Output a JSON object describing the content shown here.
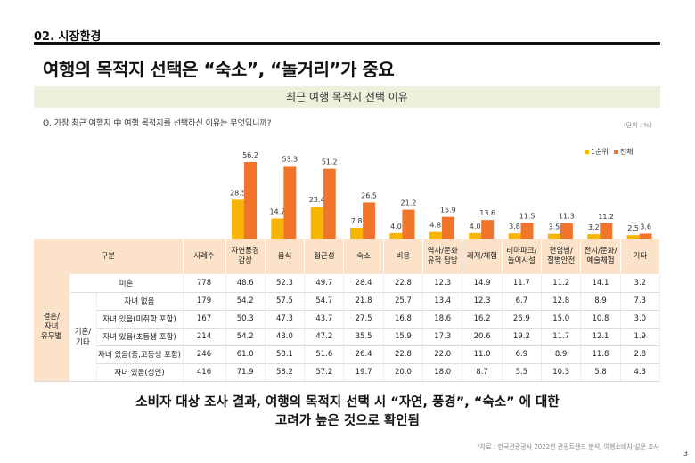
{
  "section": "02. 시장환경",
  "title": "여행의 목적지 선택은 “숙소”, “놀거리”가 중요",
  "banner": "최근 여행 목적지 선택 이유",
  "question": "Q. 가장 최근 여행지 中 여행 목적지를 선택하신 이유는 무엇입니까?",
  "unit": "(단위 : %)",
  "chart_data": {
    "type": "bar",
    "categories": [
      "자연풍경 감상",
      "음식",
      "접근성",
      "숙소",
      "비용",
      "역사/문화 유적 탐방",
      "레저/체험",
      "테마파크/놀이시설",
      "전염병/질병안전",
      "전시/문화/예술체험",
      "기타"
    ],
    "series": [
      {
        "name": "1순위",
        "color": "#f7b500",
        "values": [
          28.5,
          14.7,
          23.4,
          7.8,
          4.0,
          4.8,
          4.0,
          3.8,
          3.5,
          3.2,
          2.5
        ]
      },
      {
        "name": "전체",
        "color": "#f0742a",
        "values": [
          56.2,
          53.3,
          51.2,
          26.5,
          21.2,
          15.9,
          13.6,
          11.5,
          11.3,
          11.2,
          3.6
        ]
      }
    ],
    "legend": "top-right"
  },
  "table": {
    "headers": [
      "구분",
      "사례수",
      "자연풍경\n감상",
      "음식",
      "접근성",
      "숙소",
      "비용",
      "역사/문화\n유적 탐방",
      "레저/체험",
      "테마파크/\n놀이시설",
      "전염병/\n질병안전",
      "전시/문화/\n예술체험",
      "기타"
    ],
    "group": "결혼/\n자녀\n유무별",
    "subgroup": "기혼/\n기타",
    "rows": [
      {
        "label": "미혼",
        "values": [
          "778",
          "48.6",
          "52.3",
          "49.7",
          "28.4",
          "22.8",
          "12.3",
          "14.9",
          "11.7",
          "11.2",
          "14.1",
          "3.2"
        ]
      },
      {
        "label": "자녀 없음",
        "values": [
          "179",
          "54.2",
          "57.5",
          "54.7",
          "21.8",
          "25.7",
          "13.4",
          "12.3",
          "6.7",
          "12.8",
          "8.9",
          "7.3"
        ]
      },
      {
        "label": "자녀 있음(미취학 포함)",
        "values": [
          "167",
          "50.3",
          "47.3",
          "43.7",
          "27.5",
          "16.8",
          "18.6",
          "16.2",
          "26.9",
          "15.0",
          "10.8",
          "3.0"
        ]
      },
      {
        "label": "자녀 있음(초등생 포함)",
        "values": [
          "214",
          "54.2",
          "43.0",
          "47.2",
          "35.5",
          "15.9",
          "17.3",
          "20.6",
          "19.2",
          "11.7",
          "12.1",
          "1.9"
        ]
      },
      {
        "label": "자녀 있음(중,고등생 포함)",
        "values": [
          "246",
          "61.0",
          "58.1",
          "51.6",
          "26.4",
          "22.8",
          "22.0",
          "11.0",
          "6.9",
          "8.9",
          "11.8",
          "2.8"
        ]
      },
      {
        "label": "자녀 있음(성인)",
        "values": [
          "416",
          "71.9",
          "58.2",
          "57.2",
          "19.7",
          "20.0",
          "18.0",
          "8.7",
          "5.5",
          "10.3",
          "5.8",
          "4.3"
        ]
      }
    ]
  },
  "conclusion": [
    "소비자 대상 조사 결과, 여행의 목적지 선택 시 “자연, 풍경”, “숙소” 에 대한",
    "고려가 높은 것으로 확인됨"
  ],
  "source": "*자료 : 한국관광공사 2022년 관광트렌드 분석, 여행소비자 설문 조사",
  "page": "3"
}
